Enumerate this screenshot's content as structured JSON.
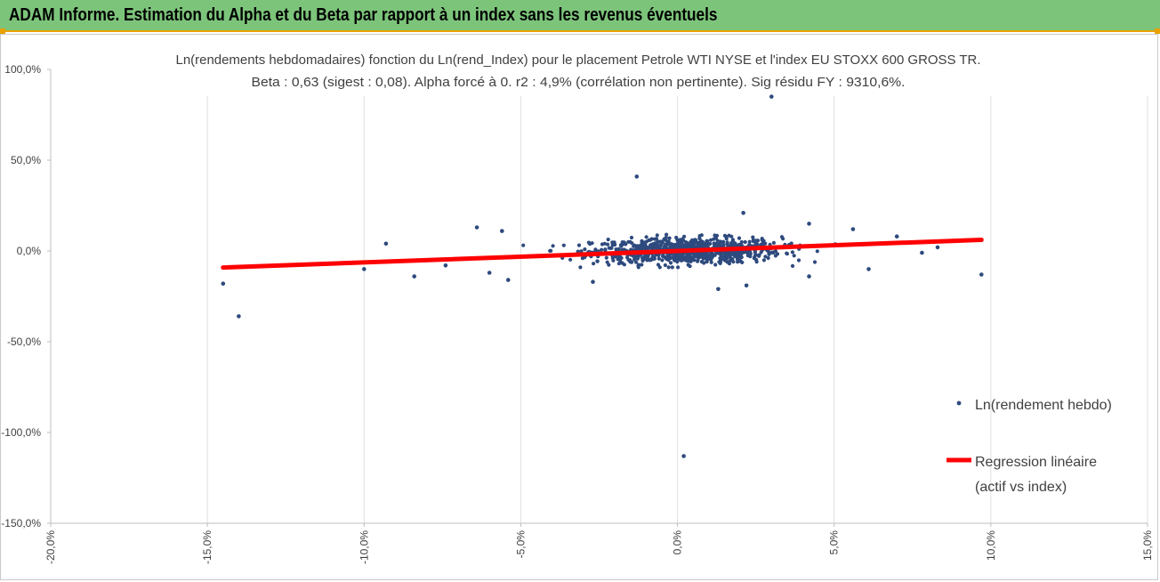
{
  "banner": {
    "title": "ADAM Informe. Estimation du Alpha et du Beta par rapport à un index sans les revenus éventuels",
    "color": "#7cc47a",
    "accent": "#e8a200"
  },
  "chart_data": {
    "type": "scatter",
    "title_line1": "Ln(rendements hebdomadaires) fonction du Ln(rend_Index) pour le placement Petrole WTI NYSE et l'index EU STOXX 600 GROSS TR.",
    "title_line2": "Beta : 0,63 (sigest : 0,08). Alpha forcé à 0. r2 : 4,9% (corrélation non pertinente). Sig résidu FY : 9310,6%.",
    "xlabel": "",
    "ylabel": "",
    "xlim": [
      -0.2,
      0.15
    ],
    "ylim": [
      -1.5,
      1.0
    ],
    "x_ticks": [
      -0.2,
      -0.15,
      -0.1,
      -0.05,
      0,
      0.05,
      0.1,
      0.15
    ],
    "x_tick_labels": [
      "-20,0%",
      "-15,0%",
      "-10,0%",
      "-5,0%",
      "0,0%",
      "5,0%",
      "10,0%",
      "15,0%"
    ],
    "y_ticks": [
      1.0,
      0.5,
      0,
      -0.5,
      -1.0,
      -1.5
    ],
    "y_tick_labels": [
      "100,0%",
      "50,0%",
      "0,0%",
      "-50,0%",
      "-100,0%",
      "-150,0%"
    ],
    "grid": "vertical",
    "legend_position": "right",
    "series": [
      {
        "name": "Ln(rendement hebdo)",
        "kind": "points",
        "color": "#2e4a7e",
        "notable_points": [
          {
            "x": 0.03,
            "y": 0.85
          },
          {
            "x": -0.013,
            "y": 0.41
          },
          {
            "x": 0.002,
            "y": -1.13
          },
          {
            "x": -0.145,
            "y": -0.18
          },
          {
            "x": -0.14,
            "y": -0.36
          },
          {
            "x": 0.097,
            "y": -0.13
          },
          {
            "x": -0.093,
            "y": 0.04
          },
          {
            "x": -0.1,
            "y": -0.1
          },
          {
            "x": -0.084,
            "y": -0.14
          },
          {
            "x": -0.064,
            "y": 0.13
          },
          {
            "x": -0.056,
            "y": 0.11
          },
          {
            "x": 0.021,
            "y": 0.21
          },
          {
            "x": 0.042,
            "y": 0.15
          },
          {
            "x": 0.056,
            "y": 0.12
          },
          {
            "x": 0.07,
            "y": 0.08
          },
          {
            "x": 0.083,
            "y": 0.02
          },
          {
            "x": 0.078,
            "y": -0.01
          },
          {
            "x": 0.061,
            "y": -0.1
          },
          {
            "x": 0.042,
            "y": -0.14
          },
          {
            "x": 0.022,
            "y": -0.19
          },
          {
            "x": 0.013,
            "y": -0.21
          },
          {
            "x": -0.054,
            "y": -0.16
          },
          {
            "x": -0.027,
            "y": -0.17
          },
          {
            "x": -0.074,
            "y": -0.08
          },
          {
            "x": -0.06,
            "y": -0.12
          }
        ],
        "cluster": {
          "count": 900,
          "x_mean": 0.003,
          "x_sd": 0.015,
          "y_sd": 0.035
        }
      },
      {
        "name": "Regression linéaire",
        "name_line2": "(actif vs index)",
        "kind": "line",
        "color": "#ff0000",
        "beta": 0.63,
        "x_range": [
          -0.145,
          0.097
        ]
      }
    ]
  }
}
